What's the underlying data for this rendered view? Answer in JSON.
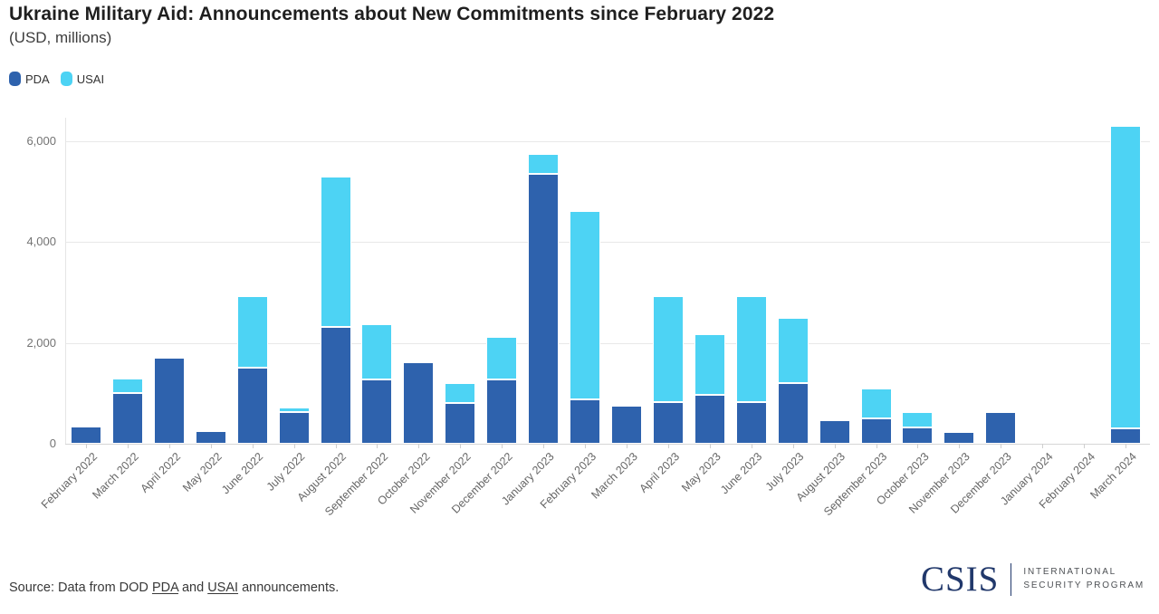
{
  "chart_data": {
    "type": "bar",
    "stacked": true,
    "title": "Ukraine Military Aid: Announcements about New Commitments since February 2022",
    "subtitle": "(USD, millions)",
    "xlabel": "",
    "ylabel": "",
    "ylim": [
      0,
      6468
    ],
    "yticks": [
      0,
      2000,
      4000,
      6000
    ],
    "ytick_labels": [
      "0",
      "2,000",
      "4,000",
      "6,000"
    ],
    "grid": true,
    "legend_position": "top-left",
    "categories": [
      "February 2022",
      "March 2022",
      "April 2022",
      "May 2022",
      "June 2022",
      "July 2022",
      "August 2022",
      "September 2022",
      "October 2022",
      "November 2022",
      "December 2022",
      "January 2023",
      "February 2023",
      "March 2023",
      "April 2023",
      "May 2023",
      "June 2023",
      "July 2023",
      "August 2023",
      "September 2023",
      "October 2023",
      "November 2023",
      "December 2023",
      "January 2024",
      "February 2024",
      "March 2024"
    ],
    "series": [
      {
        "name": "PDA",
        "color": "#2e62ad",
        "values": [
          350,
          1000,
          1700,
          250,
          1500,
          625,
          2325,
          1275,
          1625,
          800,
          1275,
          5350,
          875,
          750,
          825,
          975,
          825,
          1200,
          475,
          500,
          325,
          225,
          625,
          0,
          0,
          300
        ]
      },
      {
        "name": "USAI",
        "color": "#4dd3f4",
        "values": [
          0,
          300,
          0,
          0,
          1425,
          100,
          2980,
          1100,
          0,
          400,
          850,
          400,
          3750,
          0,
          2100,
          1200,
          2100,
          1300,
          0,
          600,
          300,
          0,
          0,
          0,
          0,
          6000
        ]
      }
    ]
  },
  "footer": {
    "source_prefix": "Source: Data from DOD ",
    "pda_link": "PDA",
    "source_mid": " and ",
    "usai_link": "USAI",
    "source_suffix": " announcements.",
    "logo": {
      "wordmark": "CSIS",
      "program_line1": "INTERNATIONAL",
      "program_line2": "SECURITY PROGRAM"
    }
  }
}
